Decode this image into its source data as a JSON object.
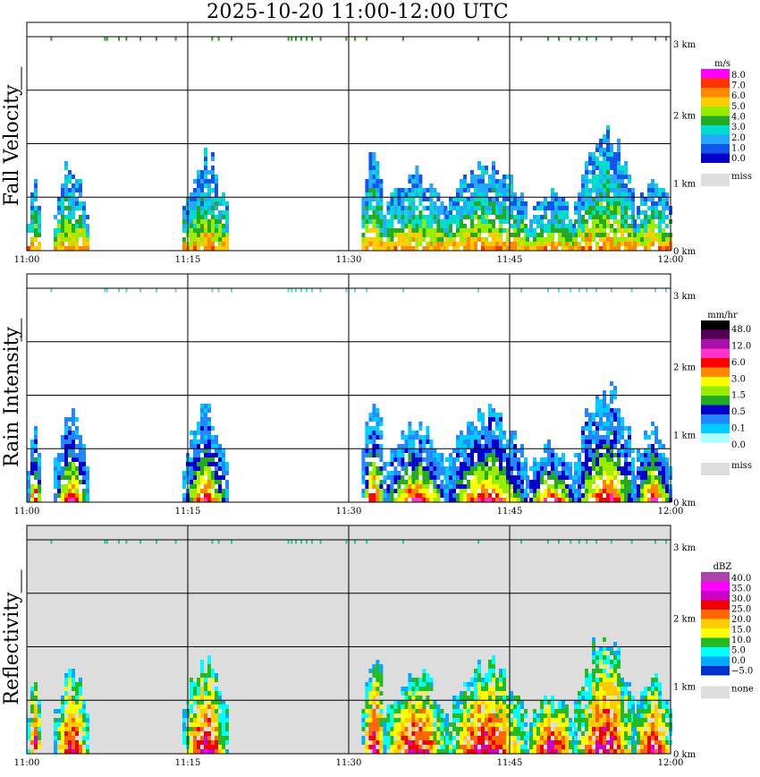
{
  "title": "2025-10-20   11:00-12:00 UTC",
  "chart_data": [
    {
      "type": "heatmap",
      "ylabel": "Fall Velocity",
      "xticks": [
        "11:00",
        "11:15",
        "11:30",
        "11:45",
        "12:00"
      ],
      "yticks": [
        "0 km",
        "1 km",
        "2 km",
        "3 km"
      ],
      "xlim_minutes": [
        0,
        60
      ],
      "ylim_km": [
        0,
        3.2
      ],
      "grid": true,
      "colorbar": {
        "unit": "m/s",
        "labels": [
          "8.0",
          "7.0",
          "6.0",
          "5.0",
          "4.0",
          "3.0",
          "2.0",
          "1.0",
          "0.0"
        ],
        "colors": [
          "#ff00ff",
          "#ff3300",
          "#ff8800",
          "#ffcc00",
          "#99ee00",
          "#22aa22",
          "#00ddcc",
          "#22aaff",
          "#1155ee",
          "#0000cc"
        ],
        "missing_label": "miss",
        "missing_color": "#dddddd"
      },
      "surface_markers_color": "#22aa22",
      "background": "#ffffff"
    },
    {
      "type": "heatmap",
      "ylabel": "Rain Intensity",
      "xticks": [
        "11:00",
        "11:15",
        "11:30",
        "11:45",
        "12:00"
      ],
      "yticks": [
        "0 km",
        "1 km",
        "2 km",
        "3 km"
      ],
      "xlim_minutes": [
        0,
        60
      ],
      "ylim_km": [
        0,
        3.2
      ],
      "grid": true,
      "colorbar": {
        "unit": "mm/hr",
        "labels": [
          "48.0",
          "12.0",
          "6.0",
          "3.0",
          "1.5",
          "0.5",
          "0.1",
          "0.0"
        ],
        "colors": [
          "#000000",
          "#550055",
          "#aa11aa",
          "#ff33cc",
          "#ff0000",
          "#ff8800",
          "#ffff00",
          "#99ee00",
          "#22aa22",
          "#0000cc",
          "#2288ff",
          "#00ccff",
          "#aaffff",
          "#ffffff"
        ],
        "missing_label": "miss",
        "missing_color": "#dddddd"
      },
      "surface_markers_color": "#55dddd",
      "background": "#ffffff"
    },
    {
      "type": "heatmap",
      "ylabel": "Reflectivity",
      "xticks": [
        "11:00",
        "11:15",
        "11:30",
        "11:45",
        "12:00"
      ],
      "yticks": [
        "0 km",
        "1 km",
        "2 km",
        "3 km"
      ],
      "xlim_minutes": [
        0,
        60
      ],
      "ylim_km": [
        0,
        3.2
      ],
      "grid": true,
      "colorbar": {
        "unit": "dBZ",
        "labels": [
          "40.0",
          "35.0",
          "30.0",
          "25.0",
          "20.0",
          "15.0",
          "10.0",
          "5.0",
          "0.0",
          "−5.0"
        ],
        "colors": [
          "#aa44aa",
          "#ff00ff",
          "#cc00cc",
          "#ee0000",
          "#ff6600",
          "#ffcc00",
          "#ffff00",
          "#22bb22",
          "#00ffff",
          "#00aaff",
          "#0033cc"
        ],
        "missing_label": "none",
        "missing_color": "#dddddd"
      },
      "surface_markers_color": "#22cc99",
      "background": "#dddddd"
    }
  ]
}
